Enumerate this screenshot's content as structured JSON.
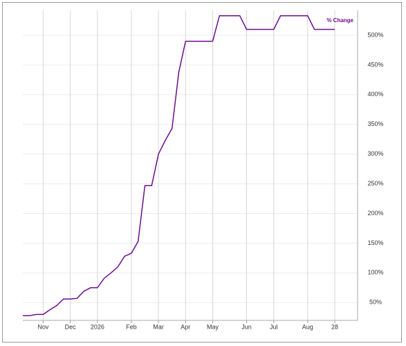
{
  "chart_data": {
    "type": "line",
    "categories": [
      null,
      null,
      null,
      "Nov",
      null,
      null,
      null,
      "Dec",
      null,
      null,
      null,
      "2026",
      null,
      null,
      null,
      null,
      "Feb",
      null,
      null,
      null,
      "Mar",
      null,
      null,
      null,
      "Apr",
      null,
      null,
      null,
      "May",
      null,
      null,
      null,
      null,
      "Jun",
      null,
      null,
      null,
      "Jul",
      null,
      null,
      null,
      null,
      "Aug",
      null,
      null,
      null,
      "28"
    ],
    "series": [
      {
        "name": "% Change",
        "color": "#6b0d8c",
        "values": [
          28,
          28,
          30,
          30,
          38,
          45,
          56,
          56,
          57,
          69,
          75,
          75,
          91,
          100,
          110,
          128,
          133,
          153,
          247,
          247,
          300,
          323,
          343,
          438,
          490,
          490,
          490,
          490,
          490,
          533,
          533,
          533,
          533,
          510,
          510,
          510,
          510,
          510,
          533,
          533,
          533,
          533,
          533,
          510,
          510,
          510,
          510
        ]
      }
    ],
    "ylim": [
      20,
      542
    ],
    "yticks": [
      {
        "value": 50,
        "label": "50%"
      },
      {
        "value": 100,
        "label": "100%"
      },
      {
        "value": 150,
        "label": "150%"
      },
      {
        "value": 200,
        "label": "200%"
      },
      {
        "value": 250,
        "label": "250%"
      },
      {
        "value": 300,
        "label": "300%"
      },
      {
        "value": 350,
        "label": "350%"
      },
      {
        "value": 400,
        "label": "400%"
      },
      {
        "value": 450,
        "label": "450%"
      },
      {
        "value": 500,
        "label": "500%"
      }
    ],
    "grid": true,
    "legend": "top-right"
  }
}
